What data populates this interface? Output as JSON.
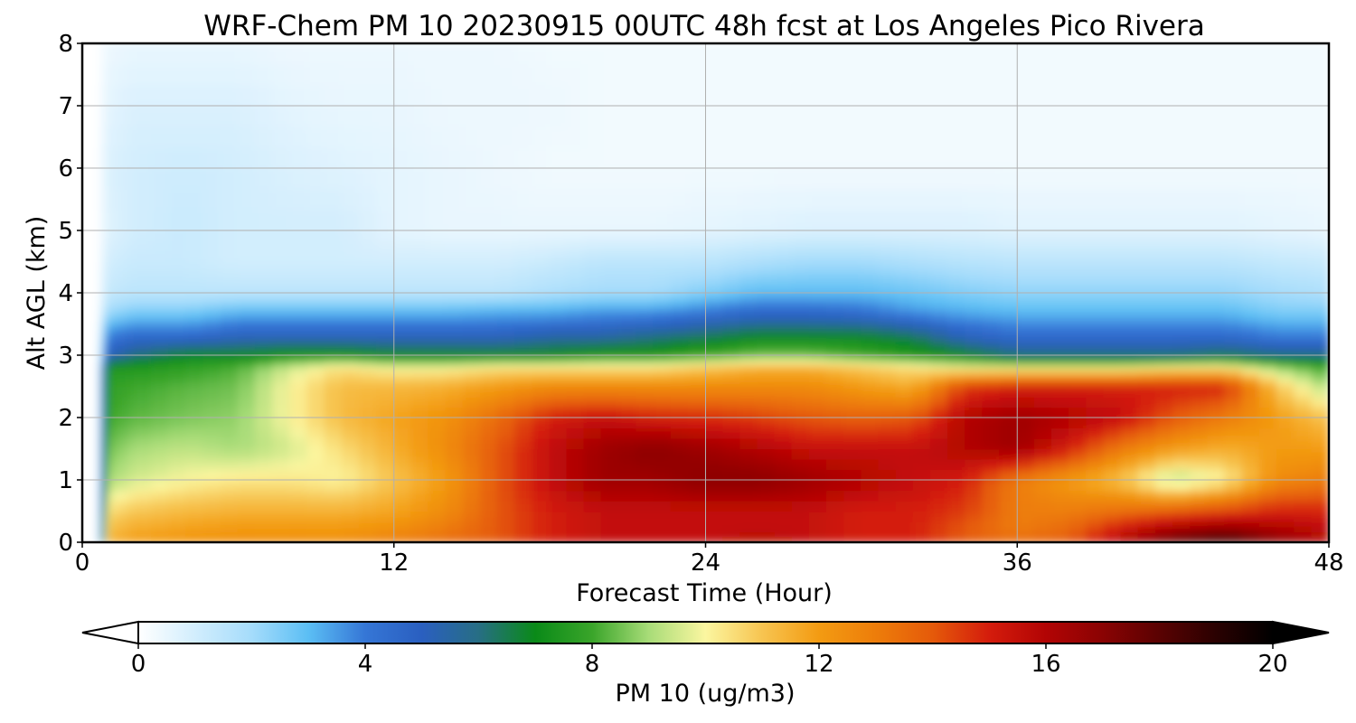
{
  "chart_data": {
    "type": "heatmap",
    "title": "WRF-Chem PM 10  20230915 00UTC 48h fcst at Los Angeles Pico Rivera",
    "xlabel": "Forecast Time (Hour)",
    "ylabel": "Alt AGL (km)",
    "xlim": [
      0,
      48
    ],
    "ylim": [
      0,
      8
    ],
    "x_ticks": [
      "0",
      "12",
      "24",
      "36",
      "48"
    ],
    "y_ticks": [
      "0",
      "1",
      "2",
      "3",
      "4",
      "5",
      "6",
      "7",
      "8"
    ],
    "grid": true,
    "colorbar": {
      "label": "PM 10  (ug/m3)",
      "range": [
        0,
        20
      ],
      "extend": "both",
      "ticks": [
        "0",
        "4",
        "8",
        "12",
        "16",
        "20"
      ],
      "stops": [
        {
          "v": 0,
          "c": "#ffffff"
        },
        {
          "v": 2,
          "c": "#a5dcfb"
        },
        {
          "v": 3,
          "c": "#5bbef4"
        },
        {
          "v": 4,
          "c": "#3576d6"
        },
        {
          "v": 5,
          "c": "#2a5fc0"
        },
        {
          "v": 6,
          "c": "#276e84"
        },
        {
          "v": 7,
          "c": "#0a8a18"
        },
        {
          "v": 8,
          "c": "#3aa52a"
        },
        {
          "v": 9,
          "c": "#a8dc78"
        },
        {
          "v": 10,
          "c": "#fbf6a0"
        },
        {
          "v": 11,
          "c": "#f7c450"
        },
        {
          "v": 12,
          "c": "#f39b12"
        },
        {
          "v": 13,
          "c": "#ed7d0a"
        },
        {
          "v": 14,
          "c": "#e55a0a"
        },
        {
          "v": 15,
          "c": "#d41c0c"
        },
        {
          "v": 16,
          "c": "#b20404"
        },
        {
          "v": 17,
          "c": "#8a0303"
        },
        {
          "v": 18,
          "c": "#5a0202"
        },
        {
          "v": 19,
          "c": "#2a0101"
        },
        {
          "v": 20,
          "c": "#000000"
        }
      ]
    },
    "hours": [
      0,
      0.6,
      1,
      2,
      4,
      6,
      8,
      10,
      12,
      14,
      16,
      18,
      20,
      22,
      24,
      26,
      28,
      30,
      32,
      34,
      36,
      38,
      40,
      42,
      44,
      46,
      48
    ],
    "altitudes_km": [
      0,
      0.25,
      0.5,
      1,
      1.5,
      2,
      2.5,
      2.8,
      3,
      3.3,
      3.7,
      4,
      4.5,
      5,
      6,
      7,
      8
    ],
    "pm10_ugm3": [
      [
        0,
        0,
        11.5,
        12,
        12.3,
        12.5,
        12.5,
        12.5,
        13,
        13.5,
        14,
        15,
        15.5,
        15.5,
        15.5,
        16,
        15.5,
        15,
        15,
        14,
        13.5,
        14,
        16,
        18,
        19,
        17,
        16
      ],
      [
        0,
        0,
        11,
        11.5,
        11.8,
        12,
        12,
        12,
        12.3,
        13,
        14,
        15,
        15.5,
        15.5,
        15.5,
        15.5,
        15.5,
        15,
        15,
        14,
        13,
        13.5,
        15,
        16,
        16.5,
        16,
        15.5
      ],
      [
        0,
        0,
        10.5,
        11,
        11.3,
        11.5,
        11.5,
        11.5,
        11.8,
        12.5,
        14,
        15,
        15.5,
        15.5,
        15.5,
        15.5,
        15.5,
        15,
        15,
        14.5,
        13,
        13,
        13.5,
        14,
        14.5,
        15,
        15
      ],
      [
        0,
        0,
        9,
        9.5,
        10,
        10.3,
        10.3,
        10,
        11,
        12,
        14,
        15.5,
        16.5,
        16.5,
        17,
        17,
        16.5,
        16,
        15.5,
        15,
        13,
        12,
        11,
        9,
        10,
        12.5,
        13
      ],
      [
        0,
        0,
        8.5,
        9,
        9.3,
        9,
        9.5,
        10.5,
        11.5,
        12.5,
        14,
        15.5,
        16.5,
        17,
        16.5,
        16,
        15.5,
        15.5,
        15.5,
        16,
        16.5,
        15,
        13,
        12,
        11.5,
        12,
        12
      ],
      [
        0,
        0,
        8,
        8.3,
        8.6,
        8.8,
        10,
        11.2,
        11.8,
        12.3,
        13.5,
        15,
        15.5,
        15,
        14.8,
        14.5,
        14,
        13.8,
        14,
        16,
        16.5,
        16,
        15.5,
        14,
        13,
        12,
        11
      ],
      [
        0,
        0,
        7.8,
        8,
        8.3,
        8.5,
        10,
        11.2,
        11.3,
        11.5,
        12,
        12.5,
        12.5,
        12.5,
        12.5,
        12.5,
        12.5,
        12,
        11.5,
        14.5,
        15,
        15,
        15,
        15,
        15,
        11,
        9
      ],
      [
        0,
        0,
        7.5,
        7.5,
        7.8,
        8.2,
        9.5,
        10.5,
        10,
        10,
        10.5,
        10.5,
        10.5,
        10.5,
        11,
        11.5,
        11.5,
        11,
        10.5,
        10,
        10,
        10,
        10,
        10.5,
        10.5,
        9,
        8
      ],
      [
        0,
        0,
        5,
        6,
        7,
        7,
        7.5,
        7.5,
        7,
        7,
        7,
        7,
        7.5,
        7.5,
        8,
        8.5,
        8.5,
        8,
        7.5,
        7,
        6,
        6,
        6,
        6,
        6.5,
        6,
        6
      ],
      [
        0,
        0,
        4,
        4.5,
        4.5,
        5,
        5,
        5,
        5,
        5,
        5,
        5.5,
        5.5,
        6,
        6.5,
        7,
        7,
        7,
        6.5,
        5,
        4.5,
        4.5,
        4.5,
        4.5,
        4.5,
        4,
        4
      ],
      [
        0,
        0,
        2,
        2.5,
        2.5,
        3,
        3,
        3,
        3,
        3,
        3.2,
        3.2,
        3.5,
        3.5,
        4,
        4.5,
        4.5,
        4.2,
        3.5,
        3.2,
        3,
        3,
        3,
        3,
        3,
        2.5,
        2.5
      ],
      [
        0,
        0,
        1.3,
        1.5,
        1.5,
        1.5,
        1.5,
        1.5,
        1.5,
        1.5,
        1.5,
        1.8,
        2,
        2,
        2.5,
        3,
        3,
        3,
        2.8,
        2.5,
        2.3,
        2.3,
        2.3,
        2.3,
        2.3,
        2,
        1.8
      ],
      [
        0,
        0,
        1,
        1.2,
        1.2,
        1,
        1,
        1,
        1,
        1,
        1,
        1.2,
        1.5,
        1.5,
        1.5,
        1.8,
        2,
        2,
        1.8,
        1.6,
        1.5,
        1.5,
        1.5,
        1.5,
        1.5,
        1.3,
        1.2
      ],
      [
        0,
        0,
        0.7,
        1,
        1.2,
        1,
        1,
        1,
        0.6,
        0.5,
        0.5,
        0.5,
        0.5,
        0.5,
        0.6,
        0.7,
        0.8,
        0.8,
        0.8,
        0.8,
        0.7,
        0.7,
        0.7,
        0.7,
        0.7,
        0.6,
        0.5
      ],
      [
        0,
        0,
        0.8,
        1,
        1.1,
        1,
        0.8,
        0.7,
        0.6,
        0.5,
        0.4,
        0.3,
        0.3,
        0.3,
        0.3,
        0.3,
        0.3,
        0.3,
        0.3,
        0.3,
        0.3,
        0.3,
        0.3,
        0.3,
        0.3,
        0.3,
        0.3
      ],
      [
        0,
        0,
        0.6,
        0.8,
        0.8,
        0.8,
        0.6,
        0.5,
        0.5,
        0.4,
        0.4,
        0.4,
        0.3,
        0.3,
        0.3,
        0.3,
        0.3,
        0.3,
        0.3,
        0.3,
        0.3,
        0.3,
        0.3,
        0.3,
        0.3,
        0.3,
        0.3
      ],
      [
        0,
        0,
        0.4,
        0.5,
        0.5,
        0.5,
        0.4,
        0.4,
        0.4,
        0.4,
        0.4,
        0.3,
        0.3,
        0.3,
        0.3,
        0.3,
        0.3,
        0.3,
        0.3,
        0.3,
        0.3,
        0.3,
        0.3,
        0.3,
        0.3,
        0.3,
        0.3
      ]
    ]
  }
}
